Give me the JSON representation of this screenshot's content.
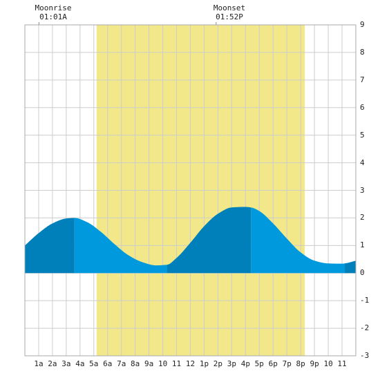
{
  "moon": {
    "rise": {
      "label": "Moonrise",
      "time": "01:01A"
    },
    "set": {
      "label": "Moonset",
      "time": "01:52P"
    }
  },
  "chart_data": {
    "type": "area",
    "title": "",
    "xlabel": "",
    "ylabel": "",
    "xlim": [
      0,
      24
    ],
    "ylim": [
      -3,
      9
    ],
    "grid": true,
    "x_tick_labels": [
      "1a",
      "2a",
      "3a",
      "4a",
      "5a",
      "6a",
      "7a",
      "8a",
      "9a",
      "10",
      "11",
      "12",
      "1p",
      "2p",
      "3p",
      "4p",
      "5p",
      "6p",
      "7p",
      "8p",
      "9p",
      "10",
      "11"
    ],
    "y_tick_labels": [
      "9",
      "8",
      "7",
      "6",
      "5",
      "4",
      "3",
      "2",
      "1",
      "0",
      "-1",
      "-2",
      "-3"
    ],
    "y_tick_values": [
      9,
      8,
      7,
      6,
      5,
      4,
      3,
      2,
      1,
      0,
      -1,
      -2,
      -3
    ],
    "daylight": {
      "start_hour": 5.2,
      "end_hour": 20.3,
      "color": "#f2e88a"
    },
    "moonrise_hour": 1.02,
    "moonset_hour": 13.87,
    "series": [
      {
        "x": [
          0,
          1,
          2,
          3,
          3.6,
          4.5,
          5.5,
          6.5,
          7.5,
          8.5,
          9.5,
          10.3,
          11,
          12,
          13,
          14,
          15,
          16,
          16.4,
          17,
          18,
          19,
          20,
          21,
          22,
          23,
          23.2,
          24
        ],
        "values": [
          1.0,
          1.45,
          1.8,
          1.98,
          2.0,
          1.85,
          1.5,
          1.05,
          0.65,
          0.4,
          0.28,
          0.3,
          0.55,
          1.1,
          1.7,
          2.15,
          2.38,
          2.4,
          2.38,
          2.25,
          1.8,
          1.25,
          0.75,
          0.45,
          0.35,
          0.34,
          0.35,
          0.45
        ]
      }
    ],
    "tide_segments": [
      {
        "from": 0,
        "to": 3.6,
        "kind": "high"
      },
      {
        "from": 3.6,
        "to": 10.3,
        "kind": "low"
      },
      {
        "from": 10.3,
        "to": 16.4,
        "kind": "high"
      },
      {
        "from": 16.4,
        "to": 23.2,
        "kind": "low"
      },
      {
        "from": 23.2,
        "to": 24,
        "kind": "high"
      }
    ],
    "colors": {
      "rising": "#0080bb",
      "falling": "#0099dd",
      "grid": "#cccccc",
      "border": "#aaaaaa",
      "background": "#ffffff"
    }
  }
}
